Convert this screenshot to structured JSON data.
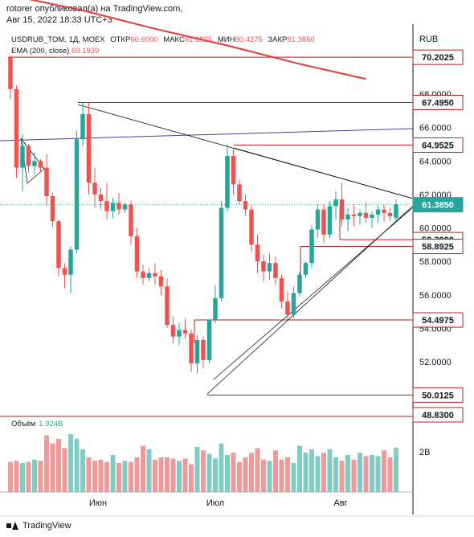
{
  "header": {
    "line1": "rotorer опубликовал(а) на TradingView.com,",
    "line2": "Авг 15, 2022 18:33 UTC+3"
  },
  "legend": {
    "symbol": "USDRUB_TOM, 1Д, MOEX",
    "open_label": "ОТКР",
    "open": "60.6000",
    "high_label": "МАКС",
    "high": "61.6825",
    "low_label": "МИН",
    "low": "60.4275",
    "close_label": "ЗАКР",
    "close": "61.3850",
    "ema_label": "EMA (200, close)",
    "ema_value": "69.1939"
  },
  "volume_legend": {
    "label": "Объём",
    "value": "1.924B"
  },
  "footer": {
    "brand": "TradingView"
  },
  "colors": {
    "up": "#26a69a",
    "down": "#ef5350",
    "ema": "#e53935",
    "hline": "#b71c1c",
    "blue_line": "#3f3fa0"
  },
  "chart_data": {
    "type": "candlestick",
    "currency": "RUB",
    "ylim": [
      48.83,
      74.3
    ],
    "yticks": [
      "52.0000",
      "54.0000",
      "56.0000",
      "58.0000",
      "60.0000",
      "62.0000",
      "64.0000",
      "66.0000",
      "68.0000"
    ],
    "xticks": [
      "Июн",
      "Июл",
      "Авг"
    ],
    "price_labels": [
      {
        "text": "70.2025",
        "value": 70.2025,
        "kind": "level"
      },
      {
        "text": "67.4950",
        "value": 67.495,
        "kind": "level"
      },
      {
        "text": "64.9525",
        "value": 64.9525,
        "kind": "level"
      },
      {
        "text": "61.3850",
        "value": 61.385,
        "kind": "last"
      },
      {
        "text": "59.3000",
        "value": 59.3,
        "kind": "level"
      },
      {
        "text": "58.8925",
        "value": 58.8925,
        "kind": "level"
      },
      {
        "text": "54.4975",
        "value": 54.4975,
        "kind": "level"
      },
      {
        "text": "50.0125",
        "value": 50.0125,
        "kind": "level"
      },
      {
        "text": "48.8300",
        "value": 48.83,
        "kind": "level"
      }
    ],
    "volume_tick": "2B",
    "ema": [
      [
        0,
        73.9
      ],
      [
        12,
        73.0
      ],
      [
        24,
        71.9
      ],
      [
        36,
        70.9
      ],
      [
        48,
        69.8
      ],
      [
        59,
        68.9
      ]
    ],
    "candles": [
      {
        "o": 70.2,
        "h": 70.3,
        "l": 67.7,
        "c": 68.3
      },
      {
        "o": 68.3,
        "h": 68.5,
        "l": 63.0,
        "c": 63.6
      },
      {
        "o": 63.6,
        "h": 65.6,
        "l": 62.2,
        "c": 64.9
      },
      {
        "o": 64.9,
        "h": 65.0,
        "l": 63.3,
        "c": 63.7
      },
      {
        "o": 63.7,
        "h": 64.5,
        "l": 63.2,
        "c": 64.0
      },
      {
        "o": 64.0,
        "h": 64.1,
        "l": 63.3,
        "c": 63.6
      },
      {
        "o": 63.6,
        "h": 64.4,
        "l": 61.3,
        "c": 61.9
      },
      {
        "o": 61.9,
        "h": 62.1,
        "l": 60.1,
        "c": 60.4
      },
      {
        "o": 60.4,
        "h": 60.5,
        "l": 57.1,
        "c": 57.6
      },
      {
        "o": 57.6,
        "h": 57.9,
        "l": 56.4,
        "c": 57.2
      },
      {
        "o": 57.2,
        "h": 58.9,
        "l": 56.1,
        "c": 58.7
      },
      {
        "o": 58.7,
        "h": 65.8,
        "l": 58.5,
        "c": 65.3
      },
      {
        "o": 65.3,
        "h": 67.5,
        "l": 64.9,
        "c": 66.8
      },
      {
        "o": 66.8,
        "h": 67.5,
        "l": 62.0,
        "c": 62.7
      },
      {
        "o": 62.7,
        "h": 63.6,
        "l": 61.2,
        "c": 62.0
      },
      {
        "o": 62.0,
        "h": 62.4,
        "l": 61.1,
        "c": 61.6
      },
      {
        "o": 61.6,
        "h": 62.7,
        "l": 60.5,
        "c": 61.0
      },
      {
        "o": 61.0,
        "h": 61.8,
        "l": 60.6,
        "c": 61.5
      },
      {
        "o": 61.5,
        "h": 62.1,
        "l": 60.8,
        "c": 61.1
      },
      {
        "o": 61.1,
        "h": 61.5,
        "l": 60.9,
        "c": 61.4
      },
      {
        "o": 61.4,
        "h": 61.6,
        "l": 59.0,
        "c": 59.5
      },
      {
        "o": 59.5,
        "h": 60.0,
        "l": 57.0,
        "c": 57.4
      },
      {
        "o": 57.4,
        "h": 57.8,
        "l": 56.6,
        "c": 57.0
      },
      {
        "o": 57.0,
        "h": 57.6,
        "l": 56.8,
        "c": 57.3
      },
      {
        "o": 57.3,
        "h": 57.9,
        "l": 56.6,
        "c": 57.1
      },
      {
        "o": 57.1,
        "h": 57.5,
        "l": 56.0,
        "c": 56.5
      },
      {
        "o": 56.5,
        "h": 57.0,
        "l": 54.0,
        "c": 54.2
      },
      {
        "o": 54.2,
        "h": 54.7,
        "l": 53.1,
        "c": 53.5
      },
      {
        "o": 53.5,
        "h": 54.3,
        "l": 53.0,
        "c": 53.9
      },
      {
        "o": 53.9,
        "h": 54.6,
        "l": 53.4,
        "c": 53.7
      },
      {
        "o": 53.7,
        "h": 53.9,
        "l": 51.4,
        "c": 51.9
      },
      {
        "o": 51.9,
        "h": 53.6,
        "l": 51.3,
        "c": 53.3
      },
      {
        "o": 53.3,
        "h": 53.5,
        "l": 51.6,
        "c": 52.1
      },
      {
        "o": 52.1,
        "h": 54.5,
        "l": 51.9,
        "c": 54.5
      },
      {
        "o": 54.5,
        "h": 56.6,
        "l": 54.3,
        "c": 55.8
      },
      {
        "o": 55.8,
        "h": 61.6,
        "l": 55.6,
        "c": 61.2
      },
      {
        "o": 61.2,
        "h": 65.0,
        "l": 61.0,
        "c": 64.3
      },
      {
        "o": 64.3,
        "h": 64.7,
        "l": 62.0,
        "c": 62.6
      },
      {
        "o": 62.6,
        "h": 62.9,
        "l": 61.4,
        "c": 61.6
      },
      {
        "o": 61.6,
        "h": 62.0,
        "l": 60.7,
        "c": 61.1
      },
      {
        "o": 61.1,
        "h": 61.4,
        "l": 58.6,
        "c": 59.0
      },
      {
        "o": 59.0,
        "h": 59.6,
        "l": 57.3,
        "c": 58.0
      },
      {
        "o": 58.0,
        "h": 58.4,
        "l": 56.8,
        "c": 57.4
      },
      {
        "o": 57.4,
        "h": 58.5,
        "l": 56.9,
        "c": 57.9
      },
      {
        "o": 57.9,
        "h": 58.3,
        "l": 56.6,
        "c": 57.0
      },
      {
        "o": 57.0,
        "h": 57.2,
        "l": 55.2,
        "c": 55.6
      },
      {
        "o": 55.6,
        "h": 56.2,
        "l": 54.5,
        "c": 54.8
      },
      {
        "o": 54.8,
        "h": 56.5,
        "l": 54.6,
        "c": 56.1
      },
      {
        "o": 56.1,
        "h": 57.4,
        "l": 55.9,
        "c": 57.2
      },
      {
        "o": 57.2,
        "h": 58.0,
        "l": 57.0,
        "c": 57.9
      },
      {
        "o": 57.9,
        "h": 60.2,
        "l": 57.6,
        "c": 59.9
      },
      {
        "o": 59.9,
        "h": 61.4,
        "l": 59.4,
        "c": 61.1
      },
      {
        "o": 61.1,
        "h": 61.4,
        "l": 59.1,
        "c": 59.6
      },
      {
        "o": 59.6,
        "h": 61.6,
        "l": 59.4,
        "c": 61.3
      },
      {
        "o": 61.3,
        "h": 62.2,
        "l": 60.5,
        "c": 61.7
      },
      {
        "o": 61.7,
        "h": 62.7,
        "l": 60.1,
        "c": 60.5
      },
      {
        "o": 60.5,
        "h": 61.2,
        "l": 59.8,
        "c": 60.8
      },
      {
        "o": 60.8,
        "h": 61.4,
        "l": 60.1,
        "c": 60.7
      },
      {
        "o": 60.7,
        "h": 61.1,
        "l": 60.2,
        "c": 60.9
      },
      {
        "o": 60.9,
        "h": 61.5,
        "l": 60.3,
        "c": 60.6
      },
      {
        "o": 60.6,
        "h": 61.0,
        "l": 60.0,
        "c": 60.8
      },
      {
        "o": 60.8,
        "h": 61.3,
        "l": 60.3,
        "c": 61.1
      },
      {
        "o": 61.1,
        "h": 61.4,
        "l": 60.4,
        "c": 60.9
      },
      {
        "o": 60.9,
        "h": 61.2,
        "l": 60.4,
        "c": 60.7
      },
      {
        "o": 60.6,
        "h": 61.7,
        "l": 60.4,
        "c": 61.4
      }
    ],
    "volumes": [
      1.3,
      1.35,
      1.25,
      1.3,
      1.4,
      1.35,
      2.45,
      2.1,
      2.3,
      1.9,
      2.5,
      2.3,
      1.85,
      1.5,
      1.35,
      1.4,
      1.3,
      1.6,
      1.25,
      1.35,
      1.3,
      1.5,
      2.0,
      1.85,
      1.4,
      1.5,
      1.5,
      1.45,
      1.35,
      1.45,
      1.2,
      1.95,
      1.8,
      1.65,
      1.45,
      2.1,
      1.6,
      1.7,
      1.3,
      1.5,
      1.7,
      1.9,
      1.4,
      1.35,
      1.8,
      1.4,
      1.5,
      1.25,
      2.0,
      1.7,
      1.85,
      1.55,
      1.7,
      1.85,
      1.5,
      1.35,
      1.6,
      1.4,
      1.7,
      1.55,
      1.6,
      1.55,
      1.8,
      1.5,
      1.92
    ]
  }
}
